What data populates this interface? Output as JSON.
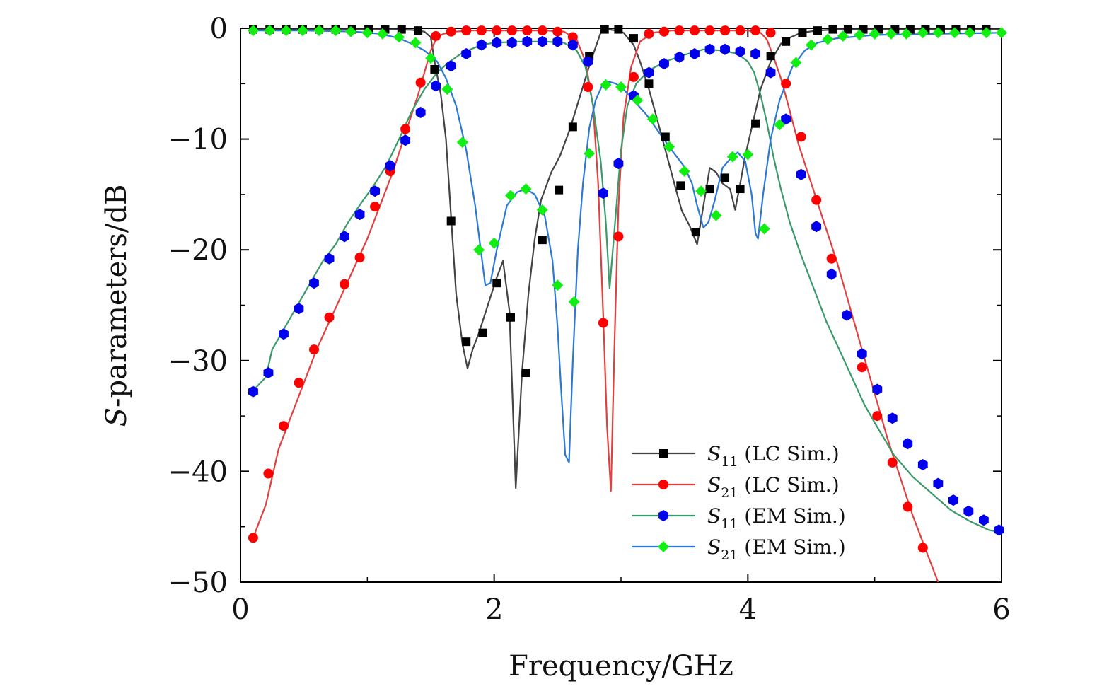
{
  "chart_data": {
    "type": "line",
    "title": "",
    "xlabel": "Frequency/GHz",
    "ylabel_italic": "S",
    "ylabel_rest": "-parameters/dB",
    "xlim": [
      0,
      6
    ],
    "ylim": [
      -50,
      0
    ],
    "xticks": [
      0,
      2,
      4,
      6
    ],
    "xtick_labels": [
      "0",
      "2",
      "4",
      "6"
    ],
    "yticks": [
      0,
      -10,
      -20,
      -30,
      -40,
      -50
    ],
    "ytick_labels": [
      "0",
      "−10",
      "−20",
      "−30",
      "−40",
      "−50"
    ],
    "grid": false,
    "legend_position": "bottom-right",
    "series": [
      {
        "name": "S11 (LC Sim.)",
        "label_base": "S",
        "label_sub": "11",
        "label_rest": " (LC Sim.)",
        "color": "#444444",
        "marker": "square",
        "marker_color": "#000000",
        "x": [
          0.1,
          0.5,
          1.0,
          1.2,
          1.35,
          1.45,
          1.5,
          1.53,
          1.58,
          1.62,
          1.66,
          1.7,
          1.75,
          1.79,
          1.83,
          1.88,
          1.95,
          2.02,
          2.07,
          2.12,
          2.17,
          2.22,
          2.27,
          2.32,
          2.37,
          2.45,
          2.52,
          2.6,
          2.68,
          2.76,
          2.84,
          2.9,
          2.96,
          3.02,
          3.1,
          3.15,
          3.22,
          3.28,
          3.35,
          3.42,
          3.48,
          3.54,
          3.6,
          3.65,
          3.7,
          3.75,
          3.8,
          3.86,
          3.9,
          3.94,
          3.98,
          4.04,
          4.1,
          4.18,
          4.26,
          4.34,
          4.42,
          4.55,
          4.7,
          5.0,
          5.4,
          5.8,
          6.0
        ],
        "y": [
          -0.1,
          -0.1,
          -0.1,
          -0.1,
          -0.15,
          -0.3,
          -0.8,
          -3.0,
          -6.0,
          -10.0,
          -17.0,
          -24.0,
          -28.5,
          -30.7,
          -29.0,
          -27.5,
          -25.0,
          -22.5,
          -21.0,
          -25.5,
          -41.5,
          -31.0,
          -24.0,
          -19.0,
          -15.5,
          -13.0,
          -11.5,
          -9.0,
          -6.0,
          -3.0,
          -0.4,
          -0.1,
          -0.2,
          -0.4,
          -1.5,
          -3.0,
          -5.5,
          -8.0,
          -11.0,
          -14.0,
          -16.5,
          -17.8,
          -19.5,
          -16.0,
          -12.6,
          -13.0,
          -14.0,
          -14.5,
          -16.4,
          -14.0,
          -11.5,
          -8.5,
          -5.5,
          -3.0,
          -1.4,
          -0.8,
          -0.4,
          -0.2,
          -0.1,
          -0.1,
          -0.1,
          -0.1,
          -0.1
        ],
        "marker_x": [
          0.1,
          0.23,
          0.36,
          0.49,
          0.62,
          0.75,
          0.88,
          1.01,
          1.14,
          1.27,
          1.4,
          1.53,
          1.66,
          1.78,
          1.91,
          2.02,
          2.13,
          2.25,
          2.38,
          2.51,
          2.62,
          2.75,
          2.87,
          2.98,
          3.1,
          3.22,
          3.35,
          3.47,
          3.59,
          3.7,
          3.82,
          3.94,
          4.06,
          4.18,
          4.3,
          4.43,
          4.55,
          4.67,
          4.79,
          4.91,
          5.03,
          5.16,
          5.28,
          5.4,
          5.52,
          5.64,
          5.76,
          5.88
        ],
        "marker_y": [
          -0.1,
          -0.1,
          -0.1,
          -0.1,
          -0.1,
          -0.1,
          -0.1,
          -0.1,
          -0.1,
          -0.1,
          -0.2,
          -3.7,
          -17.4,
          -28.3,
          -27.5,
          -23.0,
          -26.1,
          -31.1,
          -19.1,
          -14.6,
          -8.9,
          -2.5,
          -0.1,
          -0.1,
          -0.9,
          -5.0,
          -9.8,
          -14.2,
          -18.4,
          -14.5,
          -13.5,
          -14.5,
          -8.6,
          -2.5,
          -1.2,
          -0.4,
          -0.2,
          -0.1,
          -0.1,
          -0.1,
          -0.1,
          -0.1,
          -0.1,
          -0.1,
          -0.1,
          -0.1,
          -0.1,
          -0.1
        ]
      },
      {
        "name": "S21 (LC Sim.)",
        "label_base": "S",
        "label_sub": "21",
        "label_rest": " (LC Sim.)",
        "color": "#e04040",
        "marker": "circle",
        "marker_color": "#ff0000",
        "x": [
          0.1,
          0.2,
          0.3,
          0.4,
          0.5,
          0.6,
          0.7,
          0.8,
          0.9,
          1.0,
          1.1,
          1.2,
          1.3,
          1.4,
          1.45,
          1.5,
          1.55,
          1.6,
          1.7,
          1.8,
          2.0,
          2.2,
          2.4,
          2.55,
          2.65,
          2.72,
          2.78,
          2.82,
          2.86,
          2.89,
          2.92,
          2.95,
          2.98,
          3.02,
          3.08,
          3.15,
          3.25,
          3.4,
          3.6,
          3.8,
          4.0,
          4.1,
          4.15,
          4.2,
          4.26,
          4.32,
          4.4,
          4.5,
          4.6,
          4.7,
          4.8,
          4.9,
          5.0,
          5.1,
          5.2,
          5.3,
          5.4,
          5.5
        ],
        "y": [
          -46.0,
          -43.0,
          -38.0,
          -35.0,
          -32.0,
          -29.0,
          -26.5,
          -24.0,
          -21.5,
          -19.0,
          -16.0,
          -13.0,
          -9.5,
          -6.0,
          -4.0,
          -2.0,
          -0.8,
          -0.5,
          -0.3,
          -0.2,
          -0.2,
          -0.2,
          -0.2,
          -0.3,
          -1.0,
          -3.0,
          -7.0,
          -14.0,
          -26.0,
          -36.0,
          -41.8,
          -28.0,
          -16.0,
          -8.0,
          -3.5,
          -1.2,
          -0.4,
          -0.2,
          -0.2,
          -0.2,
          -0.2,
          -0.4,
          -1.0,
          -2.5,
          -4.5,
          -7.0,
          -10.5,
          -14.0,
          -17.5,
          -21.0,
          -25.0,
          -29.0,
          -33.0,
          -37.0,
          -40.5,
          -44.0,
          -47.0,
          -50.0
        ],
        "marker_x": [
          0.1,
          0.22,
          0.34,
          0.46,
          0.58,
          0.7,
          0.82,
          0.94,
          1.06,
          1.18,
          1.3,
          1.42,
          1.54,
          1.66,
          1.78,
          1.9,
          2.02,
          2.14,
          2.26,
          2.38,
          2.5,
          2.62,
          2.74,
          2.86,
          2.98,
          3.1,
          3.22,
          3.34,
          3.46,
          3.58,
          3.7,
          3.82,
          3.94,
          4.06,
          4.18,
          4.3,
          4.42,
          4.54,
          4.66,
          4.78,
          4.9,
          5.02,
          5.14,
          5.26,
          5.38
        ],
        "marker_y": [
          -46.0,
          -40.2,
          -35.9,
          -32.0,
          -29.0,
          -26.1,
          -23.1,
          -20.7,
          -16.1,
          -12.9,
          -9.1,
          -4.9,
          -0.7,
          -0.3,
          -0.2,
          -0.2,
          -0.2,
          -0.2,
          -0.2,
          -0.2,
          -0.3,
          -0.8,
          -5.3,
          -26.6,
          -18.8,
          -4.4,
          -0.5,
          -0.3,
          -0.2,
          -0.2,
          -0.2,
          -0.2,
          -0.2,
          -0.2,
          -0.4,
          -5.0,
          -9.8,
          -15.5,
          -20.8,
          -25.9,
          -30.6,
          -35.0,
          -39.2,
          -43.2,
          -46.9
        ]
      },
      {
        "name": "S11 (EM Sim.)",
        "label_base": "S",
        "label_sub": "11",
        "label_rest": " (EM Sim.)",
        "color": "#3a9a6a",
        "marker": "hexagon",
        "marker_color": "#0000ee",
        "x": [
          0.1,
          0.2,
          0.25,
          0.35,
          0.45,
          0.55,
          0.65,
          0.75,
          0.85,
          0.95,
          1.05,
          1.15,
          1.25,
          1.35,
          1.45,
          1.55,
          1.65,
          1.75,
          1.9,
          2.0,
          2.2,
          2.4,
          2.55,
          2.65,
          2.72,
          2.78,
          2.84,
          2.88,
          2.91,
          2.95,
          3.0,
          3.05,
          3.12,
          3.22,
          3.35,
          3.5,
          3.65,
          3.8,
          3.92,
          4.0,
          4.05,
          4.1,
          4.15,
          4.2,
          4.26,
          4.33,
          4.42,
          4.52,
          4.62,
          4.72,
          4.82,
          4.92,
          5.02,
          5.15,
          5.3,
          5.45,
          5.6,
          5.75,
          5.9,
          6.0
        ],
        "y": [
          -32.7,
          -31.5,
          -29.0,
          -27.0,
          -25.0,
          -23.0,
          -21.0,
          -19.5,
          -17.5,
          -15.8,
          -14.2,
          -12.4,
          -10.0,
          -7.5,
          -5.5,
          -4.0,
          -3.0,
          -2.2,
          -1.5,
          -1.3,
          -1.2,
          -1.2,
          -1.3,
          -2.0,
          -3.5,
          -7.0,
          -12.0,
          -17.5,
          -23.5,
          -18.0,
          -11.0,
          -7.0,
          -5.0,
          -3.8,
          -3.0,
          -2.4,
          -1.9,
          -2.0,
          -2.3,
          -3.0,
          -4.0,
          -6.0,
          -8.5,
          -11.5,
          -14.5,
          -17.5,
          -20.5,
          -23.5,
          -26.5,
          -29.0,
          -31.5,
          -34.0,
          -36.0,
          -38.5,
          -40.5,
          -42.0,
          -43.5,
          -44.5,
          -45.3,
          -45.5
        ],
        "marker_x": [
          0.1,
          0.22,
          0.34,
          0.46,
          0.58,
          0.7,
          0.82,
          0.94,
          1.06,
          1.18,
          1.3,
          1.42,
          1.54,
          1.66,
          1.78,
          1.9,
          2.02,
          2.14,
          2.26,
          2.38,
          2.5,
          2.62,
          2.74,
          2.86,
          2.98,
          3.1,
          3.22,
          3.34,
          3.46,
          3.58,
          3.7,
          3.82,
          3.94,
          4.06,
          4.18,
          4.3,
          4.42,
          4.54,
          4.66,
          4.78,
          4.9,
          5.02,
          5.14,
          5.26,
          5.38,
          5.5,
          5.62,
          5.74,
          5.86,
          5.98
        ],
        "marker_y": [
          -32.8,
          -31.1,
          -27.6,
          -25.3,
          -23.0,
          -20.8,
          -18.8,
          -16.8,
          -14.7,
          -12.4,
          -10.1,
          -7.6,
          -5.2,
          -3.4,
          -2.3,
          -1.5,
          -1.3,
          -1.3,
          -1.2,
          -1.2,
          -1.2,
          -1.5,
          -3.0,
          -14.9,
          -12.2,
          -6.1,
          -4.0,
          -3.2,
          -2.6,
          -2.3,
          -1.9,
          -1.9,
          -2.1,
          -2.3,
          -4.0,
          -8.2,
          -13.2,
          -17.9,
          -22.2,
          -25.9,
          -29.4,
          -32.6,
          -35.2,
          -37.5,
          -39.4,
          -41.1,
          -42.6,
          -43.6,
          -44.4,
          -45.3
        ]
      },
      {
        "name": "S21 (EM Sim.)",
        "label_base": "S",
        "label_sub": "21",
        "label_rest": " (EM Sim.)",
        "color": "#2b78d6",
        "marker": "diamond",
        "marker_color": "#11ee11",
        "x": [
          0.1,
          0.5,
          0.9,
          1.1,
          1.25,
          1.35,
          1.45,
          1.55,
          1.62,
          1.7,
          1.78,
          1.85,
          1.9,
          1.93,
          1.97,
          2.02,
          2.1,
          2.18,
          2.25,
          2.32,
          2.4,
          2.46,
          2.5,
          2.53,
          2.56,
          2.59,
          2.62,
          2.66,
          2.7,
          2.75,
          2.8,
          2.85,
          2.9,
          2.96,
          3.02,
          3.1,
          3.2,
          3.3,
          3.4,
          3.5,
          3.56,
          3.6,
          3.65,
          3.69,
          3.74,
          3.8,
          3.86,
          3.92,
          3.98,
          4.03,
          4.06,
          4.08,
          4.12,
          4.18,
          4.25,
          4.35,
          4.45,
          4.55,
          4.7,
          5.0,
          5.5,
          6.0
        ],
        "y": [
          -0.2,
          -0.2,
          -0.3,
          -0.5,
          -0.9,
          -1.4,
          -2.0,
          -3.0,
          -4.5,
          -7.0,
          -11.0,
          -16.0,
          -20.5,
          -23.2,
          -23.0,
          -20.0,
          -16.0,
          -14.8,
          -14.5,
          -15.0,
          -17.0,
          -21.0,
          -27.0,
          -33.0,
          -38.5,
          -39.2,
          -30.0,
          -20.0,
          -14.0,
          -9.0,
          -6.5,
          -5.2,
          -4.8,
          -5.0,
          -5.5,
          -6.5,
          -7.8,
          -9.4,
          -11.0,
          -12.5,
          -14.0,
          -16.0,
          -18.0,
          -17.5,
          -15.5,
          -12.6,
          -11.8,
          -11.2,
          -12.0,
          -15.0,
          -18.5,
          -19.0,
          -15.0,
          -10.0,
          -6.5,
          -3.5,
          -2.0,
          -1.3,
          -0.9,
          -0.6,
          -0.5,
          -0.4
        ],
        "marker_x": [
          0.1,
          0.23,
          0.36,
          0.49,
          0.62,
          0.75,
          0.87,
          1.0,
          1.12,
          1.25,
          1.38,
          1.5,
          1.63,
          1.75,
          1.88,
          2.0,
          2.13,
          2.25,
          2.38,
          2.5,
          2.63,
          2.75,
          2.88,
          3.0,
          3.13,
          3.25,
          3.38,
          3.5,
          3.63,
          3.75,
          3.88,
          4.0,
          4.13,
          4.25,
          4.38,
          4.5,
          4.63,
          4.75,
          4.88,
          5.0,
          5.13,
          5.25,
          5.38,
          5.5,
          5.63,
          5.75,
          5.88,
          6.0
        ],
        "marker_y": [
          -0.2,
          -0.2,
          -0.2,
          -0.2,
          -0.2,
          -0.2,
          -0.3,
          -0.4,
          -0.5,
          -0.8,
          -1.3,
          -2.7,
          -5.5,
          -10.3,
          -20.0,
          -19.4,
          -15.1,
          -14.5,
          -16.4,
          -23.2,
          -24.7,
          -11.3,
          -5.1,
          -5.3,
          -6.5,
          -8.2,
          -10.7,
          -12.9,
          -14.7,
          -16.9,
          -11.6,
          -11.4,
          -18.1,
          -8.7,
          -3.1,
          -1.5,
          -1.0,
          -0.7,
          -0.6,
          -0.5,
          -0.5,
          -0.5,
          -0.4,
          -0.4,
          -0.4,
          -0.4,
          -0.4,
          -0.4
        ]
      }
    ]
  }
}
